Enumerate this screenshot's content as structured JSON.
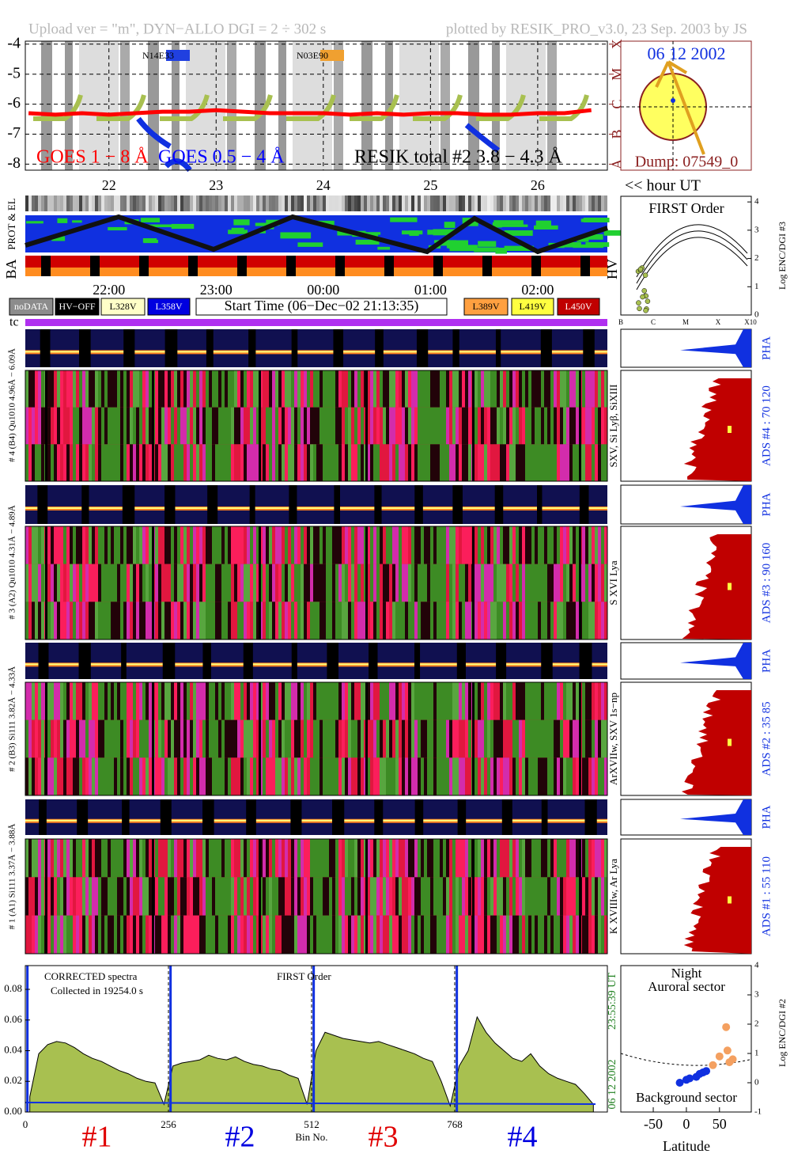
{
  "header": {
    "left": "Upload ver = \"m\", DYN−ALLO DGI =   2 ÷ 302 s",
    "right": "plotted by RESIK_PRO_v3.0, 23 Sep. 2003 by JS"
  },
  "goes": {
    "xlim": [
      21.22,
      26.65
    ],
    "ylim": [
      -8.2,
      -3.9
    ],
    "yticks": [
      -4,
      -5,
      -6,
      -7,
      -8
    ],
    "class_ticks": [
      {
        "value": -4,
        "label": "X"
      },
      {
        "value": -5,
        "label": "M"
      },
      {
        "value": -6,
        "label": "C"
      },
      {
        "value": -7,
        "label": "B"
      },
      {
        "value": -8,
        "label": "A"
      }
    ],
    "regions": [
      "N14E33",
      "N03E90"
    ],
    "legend": [
      {
        "text": "GOES 1 − 8 Å",
        "color": "#ff0000"
      },
      {
        "text": "GOES 0.5 − 4 Å",
        "color": "#0000ff"
      },
      {
        "text": "RESIK total #2  3.8 − 4.3 Å",
        "color": "#000000"
      }
    ],
    "flux_1_8": {
      "color": "#ff0000",
      "x": [
        21.25,
        21.5,
        21.75,
        22,
        22.25,
        22.5,
        22.75,
        23,
        23.25,
        23.5,
        23.75,
        24,
        24.25,
        24.5,
        24.75,
        25,
        25.25,
        25.5,
        25.75,
        26,
        26.25,
        26.5
      ],
      "values": [
        -6.3,
        -6.35,
        -6.3,
        -6.35,
        -6.3,
        -6.25,
        -6.25,
        -6.2,
        -6.25,
        -6.3,
        -6.3,
        -6.3,
        -6.35,
        -6.3,
        -6.35,
        -6.3,
        -6.3,
        -6.35,
        -6.35,
        -6.3,
        -6.3,
        -6.2
      ]
    }
  },
  "sun": {
    "date": "06 12 2002",
    "dump": "Dump: 07549_0"
  },
  "hours": {
    "ticks": [
      22,
      23,
      24,
      25,
      26
    ],
    "label": "<< hour UT"
  },
  "orbit": {
    "prot_label": "PROT & EL",
    "ba_label": "BA",
    "hv_label": "HV"
  },
  "first_order": {
    "title": "FIRST Order",
    "axis_label": "Log ENC/DGI #3",
    "yticks": [
      0,
      1,
      2,
      3,
      4
    ],
    "ylim": [
      0,
      4.2
    ],
    "xlabels": [
      "B",
      "C",
      "M",
      "X",
      "X10"
    ]
  },
  "time_ticks": [
    "22:00",
    "23:00",
    "00:00",
    "01:00",
    "02:00"
  ],
  "legend_boxes": [
    {
      "label": "noDATA",
      "color": "#8c8c8c",
      "text_color": "#ffffff"
    },
    {
      "label": "HV−OFF",
      "color": "#000000",
      "text_color": "#ffffff"
    },
    {
      "label": "L328V",
      "color": "#ffffc8",
      "text_color": "#000000"
    },
    {
      "label": "L358V",
      "color": "#0000e0",
      "text_color": "#ffffff"
    },
    {
      "label": "Start Time (06−Dec−02 21:13:35)",
      "color": "#ffffff",
      "text_color": "#000000"
    },
    {
      "label": "L389V",
      "color": "#ffa040",
      "text_color": "#000000"
    },
    {
      "label": "L419V",
      "color": "#ffff40",
      "text_color": "#000000"
    },
    {
      "label": "L450V",
      "color": "#c00000",
      "text_color": "#ffffff"
    }
  ],
  "tc_label": "tc",
  "channels": [
    {
      "left_label": "# 4 (B4) Qu1010 4.96Å − 6.09Å",
      "lines": "SXV, Si Lyβ, SiXIII",
      "ads": "ADS #4 :   70 120",
      "pha": "PHA"
    },
    {
      "left_label": "# 3 (A2) Qu1010 4.31Å − 4.89Å",
      "lines": "S XVI Lya",
      "ads": "ADS #3 :   90 160",
      "pha": "PHA"
    },
    {
      "left_label": "# 2 (B3) Si111 3.82Å − 4.33Å",
      "lines": "ArXVIIw, SXV 1s−np",
      "ads": "ADS #2 :   35 85",
      "pha": "PHA"
    },
    {
      "left_label": "# 1 (A1) Si111 3.37Å − 3.88Å",
      "lines": "K XVIIIw, Ar Lya",
      "ads": "ADS #1 :   55 110",
      "pha": "PHA"
    }
  ],
  "spectrum": {
    "notes": [
      "CORRECTED spectra",
      "Collected in 19254.0 s"
    ],
    "order": "FIRST Order",
    "time": "23:55:39 UT",
    "date": "06 12 2002",
    "xlim": [
      0,
      1041
    ],
    "ylim": [
      0,
      0.0955
    ],
    "yticks": [
      {
        "value": 0,
        "label": "0.00"
      },
      {
        "value": 0.02,
        "label": "0.02"
      },
      {
        "value": 0.04,
        "label": "0.04"
      },
      {
        "value": 0.06,
        "label": "0.06"
      },
      {
        "value": 0.08,
        "label": "0.08"
      }
    ],
    "xticks": [
      0,
      256,
      512,
      768
    ],
    "xlabel": "Bin No.",
    "segments": [
      {
        "label": "#1",
        "color": "#e00000"
      },
      {
        "label": "#2",
        "color": "#0000e0"
      },
      {
        "label": "#3",
        "color": "#e00000"
      },
      {
        "label": "#4",
        "color": "#0000e0"
      }
    ],
    "color": "#a8c050",
    "x": [
      8,
      24,
      40,
      56,
      72,
      88,
      104,
      120,
      136,
      152,
      168,
      184,
      200,
      216,
      232,
      248,
      264,
      280,
      296,
      312,
      328,
      344,
      360,
      376,
      392,
      408,
      424,
      440,
      456,
      472,
      488,
      504,
      520,
      536,
      552,
      568,
      584,
      600,
      616,
      632,
      648,
      664,
      680,
      696,
      712,
      728,
      744,
      760,
      776,
      792,
      808,
      824,
      840,
      856,
      872,
      888,
      904,
      920,
      936,
      952,
      968,
      984,
      1000,
      1016
    ],
    "values": [
      0.01,
      0.038,
      0.044,
      0.046,
      0.045,
      0.042,
      0.038,
      0.035,
      0.033,
      0.03,
      0.027,
      0.025,
      0.022,
      0.02,
      0.019,
      0.005,
      0.03,
      0.032,
      0.033,
      0.034,
      0.037,
      0.035,
      0.034,
      0.036,
      0.033,
      0.031,
      0.03,
      0.028,
      0.027,
      0.024,
      0.022,
      0.005,
      0.04,
      0.052,
      0.05,
      0.048,
      0.047,
      0.046,
      0.045,
      0.046,
      0.044,
      0.042,
      0.04,
      0.038,
      0.035,
      0.033,
      0.02,
      0.004,
      0.03,
      0.04,
      0.062,
      0.052,
      0.045,
      0.04,
      0.035,
      0.033,
      0.038,
      0.03,
      0.025,
      0.022,
      0.02,
      0.018,
      0.012,
      0.005
    ]
  },
  "aurora": {
    "title": "Night",
    "subtitle": "Auroral sector",
    "bottom": "Background sector",
    "xlabel": "Latitude",
    "ylabel": "Log ENC/DGI #2",
    "xlim": [
      -99,
      98
    ],
    "ylim": [
      -1,
      4
    ],
    "xticks": [
      -50,
      0,
      50
    ],
    "yticks": [
      -1,
      0,
      1,
      2,
      3,
      4
    ],
    "series": [
      {
        "color": "#f4a060",
        "x": [
          60,
          50,
          62,
          70,
          40,
          65
        ],
        "values": [
          1.9,
          0.9,
          1.1,
          0.8,
          0.6,
          0.7
        ]
      },
      {
        "color": "#1030e0",
        "x": [
          -10,
          0,
          5,
          15,
          20,
          25,
          30
        ],
        "values": [
          0,
          0.1,
          0.15,
          0.2,
          0.3,
          0.35,
          0.4
        ]
      }
    ]
  }
}
